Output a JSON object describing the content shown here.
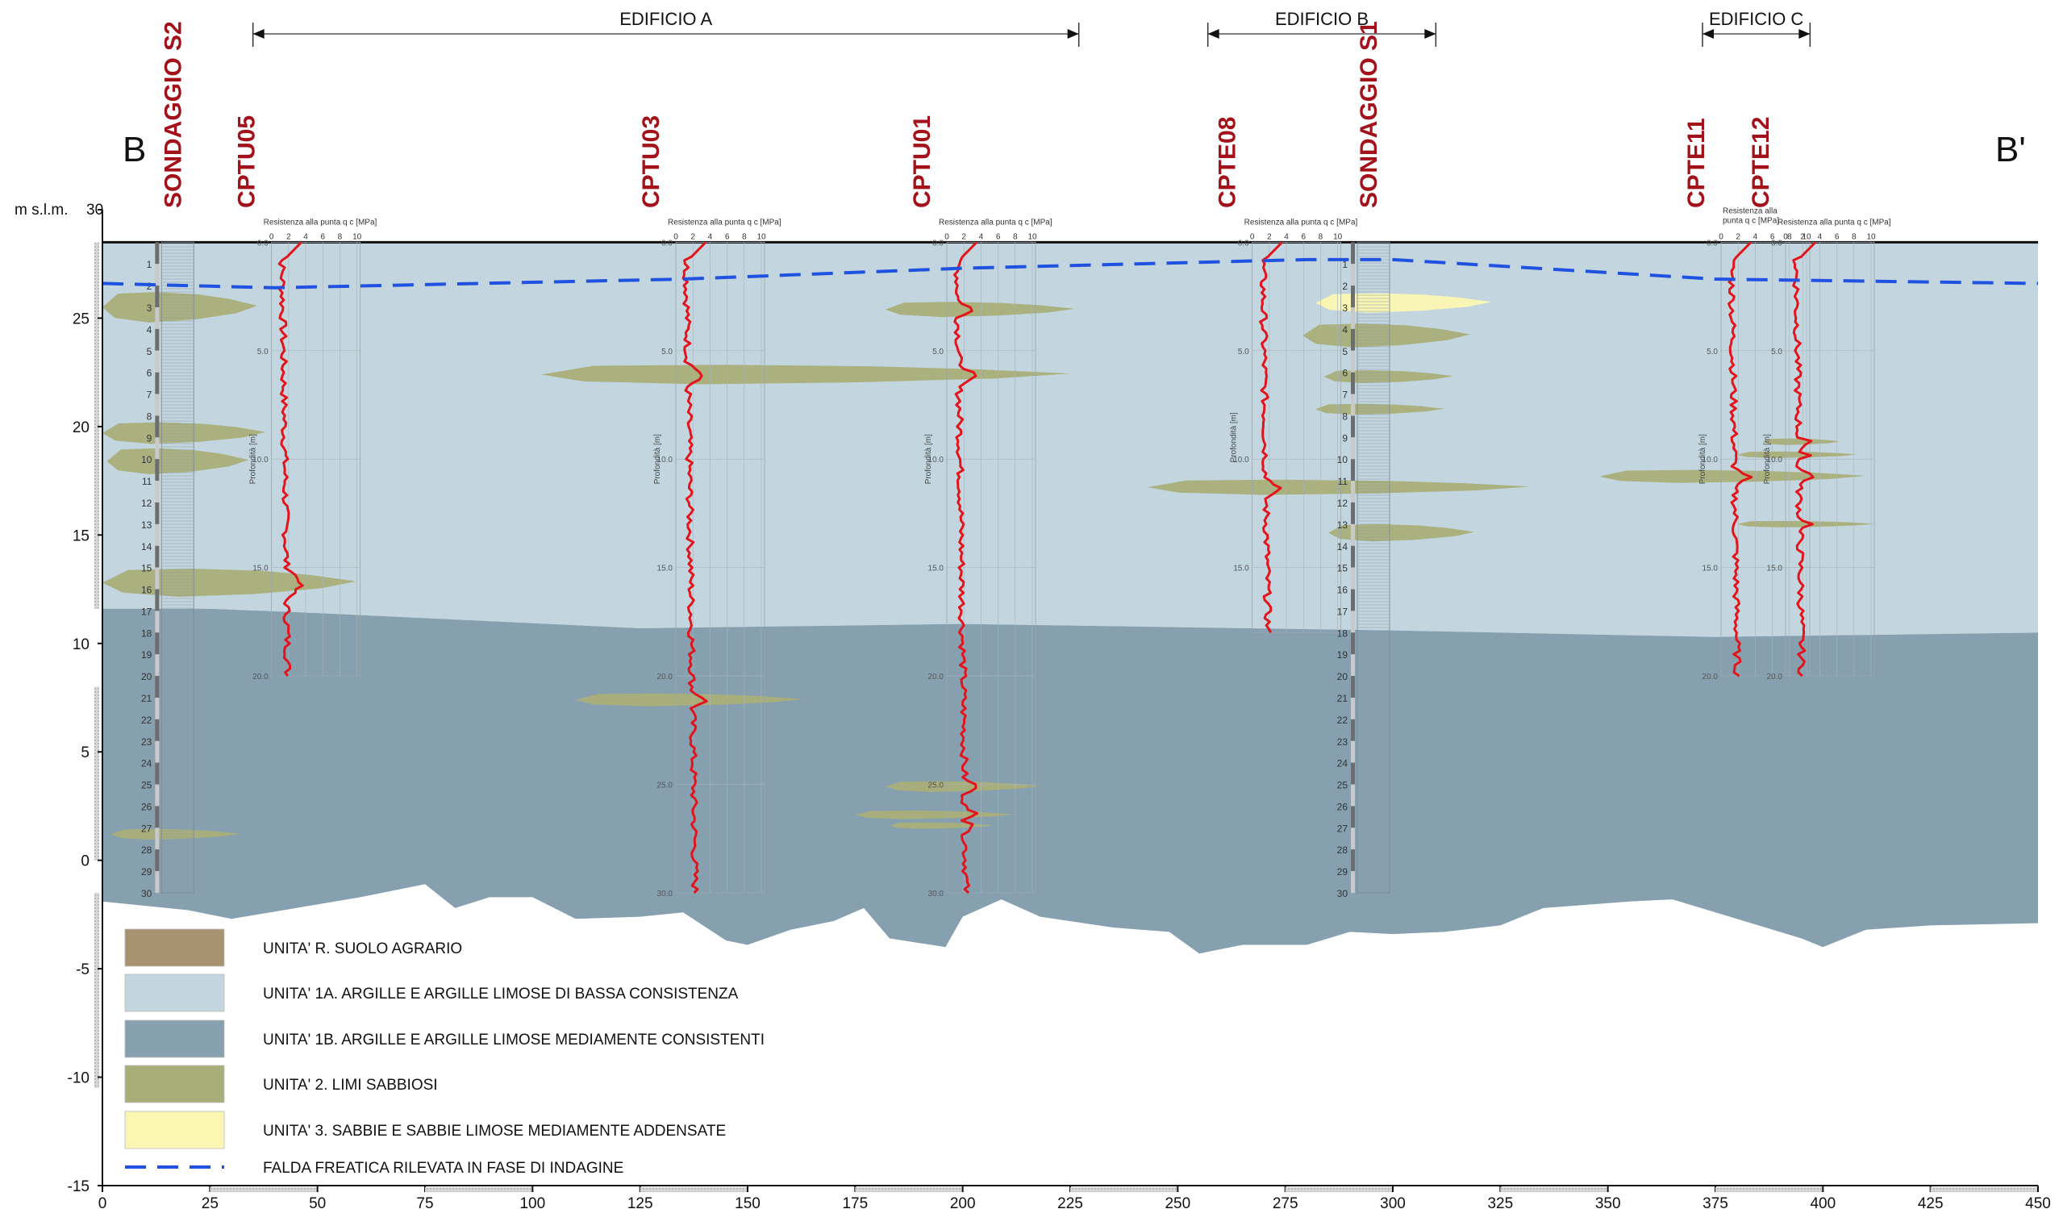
{
  "section": {
    "start_label": "B",
    "end_label": "B'",
    "y_axis_unit": "m s.l.m.",
    "y_ticks": [
      30,
      25,
      20,
      15,
      10,
      5,
      0,
      -5,
      -10,
      -15
    ],
    "x_ticks": [
      0,
      25,
      50,
      75,
      100,
      125,
      150,
      175,
      200,
      225,
      250,
      275,
      300,
      325,
      350,
      375,
      400,
      425,
      450
    ],
    "x_range": [
      0,
      450
    ],
    "y_range": [
      -15,
      30
    ]
  },
  "buildings": [
    {
      "name": "EDIFICIO A",
      "from": 35,
      "to": 227
    },
    {
      "name": "EDIFICIO B",
      "from": 257,
      "to": 310
    },
    {
      "name": "EDIFICIO C",
      "from": 372,
      "to": 397
    }
  ],
  "investigations": [
    {
      "id": "SONDAGGIO S2",
      "type": "borehole",
      "x": 16,
      "top": 28.5,
      "depth": 30
    },
    {
      "id": "CPTU05",
      "type": "cpt",
      "x": 41,
      "top": 28.5,
      "depth": 20
    },
    {
      "id": "CPTU03",
      "type": "cpt",
      "x": 135,
      "top": 28.5,
      "depth": 30
    },
    {
      "id": "CPTU01",
      "type": "cpt",
      "x": 198,
      "top": 28.5,
      "depth": 30
    },
    {
      "id": "CPTE08",
      "type": "cpt",
      "x": 269,
      "top": 28.5,
      "depth": 18
    },
    {
      "id": "SONDAGGIO S1",
      "type": "borehole",
      "x": 294,
      "top": 28.5,
      "depth": 30
    },
    {
      "id": "CPTE11",
      "type": "cpt",
      "x": 378,
      "top": 28.5,
      "depth": 20
    },
    {
      "id": "CPTE12",
      "type": "cpt",
      "x": 393,
      "top": 28.5,
      "depth": 20
    }
  ],
  "cpt_panel": {
    "title": "Resistenza alla punta q c [MPa]",
    "title_split": [
      "Resistenza alla",
      "punta q c [MPa]"
    ],
    "scale_ticks": [
      "0",
      "2",
      "4",
      "6",
      "8",
      "10"
    ],
    "depth_label": "Profondità [m]",
    "depth_ticks": [
      "0.0",
      "5.0",
      "10.0",
      "15.0",
      "20.0",
      "25.0",
      "30.0"
    ]
  },
  "borehole_depth_numbers": [
    1,
    2,
    3,
    4,
    5,
    6,
    7,
    8,
    9,
    10,
    11,
    12,
    13,
    14,
    15,
    16,
    17,
    18,
    19,
    20,
    21,
    22,
    23,
    24,
    25,
    26,
    27,
    28,
    29,
    30
  ],
  "ground_surface_elev": 28.5,
  "water_table": [
    {
      "x": 0,
      "y": 26.6
    },
    {
      "x": 40,
      "y": 26.4
    },
    {
      "x": 135,
      "y": 26.8
    },
    {
      "x": 200,
      "y": 27.3
    },
    {
      "x": 280,
      "y": 27.7
    },
    {
      "x": 300,
      "y": 27.7
    },
    {
      "x": 375,
      "y": 26.8
    },
    {
      "x": 450,
      "y": 26.6
    }
  ],
  "unit_1a_1b_boundary": [
    {
      "x": 0,
      "y": 11.6
    },
    {
      "x": 25,
      "y": 11.6
    },
    {
      "x": 50,
      "y": 11.4
    },
    {
      "x": 125,
      "y": 10.7
    },
    {
      "x": 200,
      "y": 10.9
    },
    {
      "x": 300,
      "y": 10.6
    },
    {
      "x": 375,
      "y": 10.3
    },
    {
      "x": 450,
      "y": 10.5
    }
  ],
  "base_profile": [
    {
      "x": 0,
      "y": -1.9
    },
    {
      "x": 10,
      "y": -2.1
    },
    {
      "x": 20,
      "y": -2.3
    },
    {
      "x": 30,
      "y": -2.7
    },
    {
      "x": 45,
      "y": -2.2
    },
    {
      "x": 60,
      "y": -1.7
    },
    {
      "x": 75,
      "y": -1.1
    },
    {
      "x": 82,
      "y": -2.2
    },
    {
      "x": 90,
      "y": -1.7
    },
    {
      "x": 100,
      "y": -1.7
    },
    {
      "x": 110,
      "y": -2.7
    },
    {
      "x": 125,
      "y": -2.6
    },
    {
      "x": 135,
      "y": -2.4
    },
    {
      "x": 145,
      "y": -3.7
    },
    {
      "x": 150,
      "y": -3.9
    },
    {
      "x": 160,
      "y": -3.2
    },
    {
      "x": 170,
      "y": -2.8
    },
    {
      "x": 177,
      "y": -2.2
    },
    {
      "x": 183,
      "y": -3.6
    },
    {
      "x": 196,
      "y": -4.0
    },
    {
      "x": 200,
      "y": -2.6
    },
    {
      "x": 209,
      "y": -1.8
    },
    {
      "x": 218,
      "y": -2.6
    },
    {
      "x": 235,
      "y": -3.1
    },
    {
      "x": 248,
      "y": -3.3
    },
    {
      "x": 255,
      "y": -4.3
    },
    {
      "x": 265,
      "y": -3.9
    },
    {
      "x": 280,
      "y": -3.9
    },
    {
      "x": 290,
      "y": -3.3
    },
    {
      "x": 300,
      "y": -3.4
    },
    {
      "x": 312,
      "y": -3.3
    },
    {
      "x": 325,
      "y": -3.0
    },
    {
      "x": 335,
      "y": -2.2
    },
    {
      "x": 355,
      "y": -1.9
    },
    {
      "x": 365,
      "y": -1.8
    },
    {
      "x": 380,
      "y": -2.7
    },
    {
      "x": 395,
      "y": -3.6
    },
    {
      "x": 400,
      "y": -4.0
    },
    {
      "x": 410,
      "y": -3.2
    },
    {
      "x": 425,
      "y": -3.0
    },
    {
      "x": 450,
      "y": -2.9
    }
  ],
  "lenses": [
    {
      "unit": "2",
      "x0": 0,
      "x1": 36,
      "y": 25.5,
      "t": 1.4
    },
    {
      "unit": "2",
      "x0": 0,
      "x1": 38,
      "y": 19.7,
      "t": 1.0
    },
    {
      "unit": "2",
      "x0": 1,
      "x1": 34,
      "y": 18.4,
      "t": 1.2
    },
    {
      "unit": "2",
      "x0": 0,
      "x1": 59,
      "y": 12.8,
      "t": 1.3
    },
    {
      "unit": "2",
      "x0": 2,
      "x1": 32,
      "y": 1.2,
      "t": 0.5
    },
    {
      "unit": "2",
      "x0": 102,
      "x1": 225,
      "y": 22.4,
      "t": 0.9
    },
    {
      "unit": "2",
      "x0": 110,
      "x1": 163,
      "y": 7.4,
      "t": 0.6
    },
    {
      "unit": "2",
      "x0": 182,
      "x1": 226,
      "y": 25.4,
      "t": 0.7
    },
    {
      "unit": "2",
      "x0": 182,
      "x1": 218,
      "y": 3.4,
      "t": 0.5
    },
    {
      "unit": "2",
      "x0": 175,
      "x1": 212,
      "y": 2.1,
      "t": 0.4
    },
    {
      "unit": "2",
      "x0": 183,
      "x1": 207,
      "y": 1.6,
      "t": 0.3
    },
    {
      "unit": "3",
      "x0": 282,
      "x1": 323,
      "y": 25.7,
      "t": 0.9
    },
    {
      "unit": "2",
      "x0": 279,
      "x1": 318,
      "y": 24.2,
      "t": 1.1
    },
    {
      "unit": "2",
      "x0": 284,
      "x1": 314,
      "y": 22.3,
      "t": 0.6
    },
    {
      "unit": "2",
      "x0": 282,
      "x1": 312,
      "y": 20.8,
      "t": 0.5
    },
    {
      "unit": "2",
      "x0": 243,
      "x1": 332,
      "y": 17.2,
      "t": 0.7
    },
    {
      "unit": "2",
      "x0": 285,
      "x1": 319,
      "y": 15.1,
      "t": 0.8
    },
    {
      "unit": "2",
      "x0": 348,
      "x1": 410,
      "y": 17.7,
      "t": 0.6
    },
    {
      "unit": "2",
      "x0": 380,
      "x1": 408,
      "y": 18.7,
      "t": 0.3
    },
    {
      "unit": "2",
      "x0": 386,
      "x1": 404,
      "y": 19.3,
      "t": 0.3
    },
    {
      "unit": "2",
      "x0": 380,
      "x1": 412,
      "y": 15.5,
      "t": 0.3
    }
  ],
  "legend": [
    {
      "label": "UNITA' R. SUOLO AGRARIO",
      "color": "#a89370"
    },
    {
      "label": "UNITA' 1A. ARGILLE E ARGILLE LIMOSE DI BASSA CONSISTENZA",
      "color": "#c3d6df"
    },
    {
      "label": "UNITA' 1B. ARGILLE E ARGILLE LIMOSE MEDIAMENTE CONSISTENTI",
      "color": "#86a0b0"
    },
    {
      "label": "UNITA' 2. LIMI SABBIOSI",
      "color": "#a9ae78"
    },
    {
      "label": "UNITA' 3. SABBIE E SABBIE LIMOSE MEDIAMENTE ADDENSATE",
      "color": "#fbf7b2"
    },
    {
      "label": "FALDA FREATICA RILEVATA IN FASE DI INDAGINE",
      "color": "#1f52e0"
    }
  ],
  "colors": {
    "unit_1a": "#c3d6df",
    "unit_1b": "#86a0b0",
    "unit_2": "#a9ae78",
    "unit_3": "#fbf7b2",
    "cpt_trace": "#e3141b",
    "water_table": "#1f52e0",
    "label_red": "#a3121a"
  }
}
